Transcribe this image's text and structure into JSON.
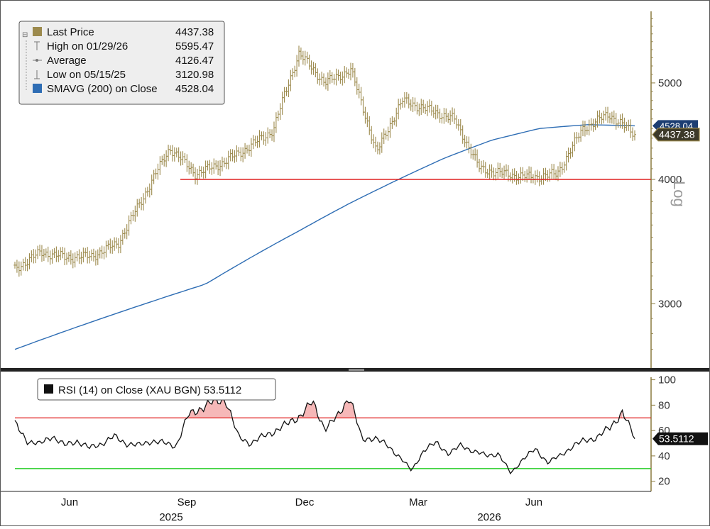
{
  "chart_data": [
    {
      "type": "line",
      "subtype": "ohlc-bars-with-moving-average",
      "yscale": "log",
      "ylim": [
        2620,
        5900
      ],
      "yticks": [
        3000,
        4000,
        5000
      ],
      "ytick_labels": [
        "3000",
        "4000",
        "5000"
      ],
      "scale_label": "Log",
      "x_tick_labels": [
        "Jun",
        "Sep",
        "Dec",
        "Mar",
        "Jun"
      ],
      "x_year_labels": [
        "2025",
        "2026"
      ],
      "legend_position": "top-left",
      "legend": [
        {
          "label": "Last Price",
          "value": "4437.38",
          "color": "#9c8a4d"
        },
        {
          "label": "High on 01/29/26",
          "value": "5595.47"
        },
        {
          "label": "Average",
          "value": "4126.47"
        },
        {
          "label": "Low on 05/15/25",
          "value": "3120.98"
        },
        {
          "label": "SMAVG (200)  on Close",
          "value": "4528.04",
          "color": "#2e6db4"
        }
      ],
      "reference_line": {
        "value": 4000,
        "color": "#e02020"
      },
      "last_price_tag": "4437.38",
      "sma_tag": "4528.04",
      "price_color": "#9c8a4d",
      "sma_color": "#2e6db4",
      "price_x": [
        "May 2025",
        "Jun 2025",
        "Jul 2025",
        "Aug 2025",
        "Sep 2025",
        "Oct 2025",
        "Nov 2025",
        "Dec 2025",
        "Jan 2026",
        "Feb 2026",
        "Mar 2026",
        "Apr 2026",
        "May 2026",
        "Jun 2026",
        "Jul 2026"
      ],
      "price_waypoints": [
        3250,
        3380,
        3340,
        3350,
        3450,
        3850,
        4300,
        4050,
        4150,
        4300,
        4480,
        5350,
        5000,
        5150,
        4250,
        4800,
        4700,
        4600,
        4100,
        4050,
        4020,
        4050,
        4500,
        4650,
        4437.38
      ],
      "sma_waypoints": [
        2700,
        2810,
        2920,
        3030,
        3140,
        3350,
        3560,
        3780,
        3990,
        4200,
        4380,
        4500,
        4540,
        4528.04
      ]
    },
    {
      "type": "line",
      "title": "RSI (14)  on Close (XAU BGN) 53.5112",
      "series": [
        {
          "name": "RSI (14)  on Close (XAU BGN)",
          "last": 53.5112
        }
      ],
      "ylim": [
        12,
        102
      ],
      "yticks": [
        20,
        40,
        60,
        80,
        100
      ],
      "ytick_labels": [
        "20",
        "40",
        "60",
        "80",
        "100"
      ],
      "overbought": 70,
      "oversold": 30,
      "last_tag": "53.5112",
      "rsi_waypoints": [
        65,
        52,
        49,
        56,
        48,
        52,
        46,
        50,
        55,
        50,
        48,
        52,
        50,
        48,
        72,
        78,
        82,
        85,
        55,
        50,
        55,
        60,
        65,
        72,
        82,
        62,
        70,
        88,
        52,
        55,
        48,
        40,
        28,
        45,
        50,
        42,
        48,
        44,
        40,
        42,
        26,
        38,
        45,
        35,
        40,
        48,
        52,
        55,
        62,
        75,
        53.5112
      ]
    }
  ]
}
